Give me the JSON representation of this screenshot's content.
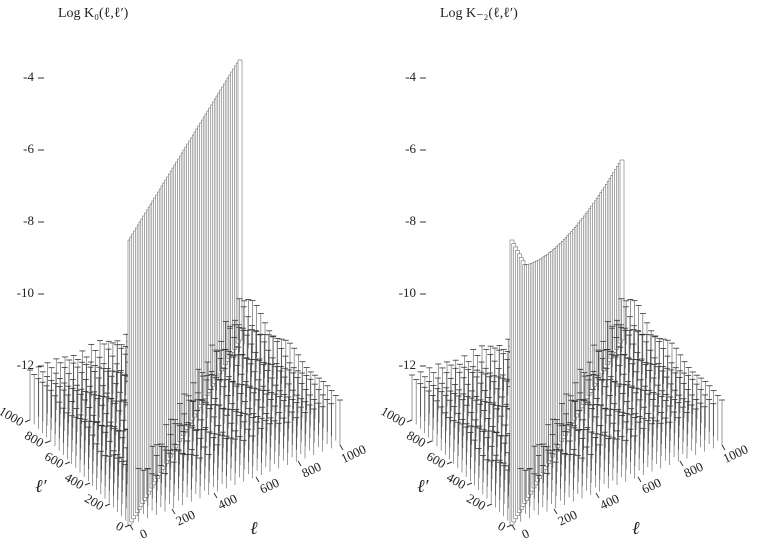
{
  "chart_data": [
    {
      "type": "surface3d",
      "title": "Log K₀(ℓ,ℓ′)",
      "xlabel": "ℓ",
      "ylabel": "ℓ′",
      "zlim": [
        -13.5,
        -4
      ],
      "zticks": [
        -4,
        -6,
        -8,
        -10,
        -12
      ],
      "xlim": [
        0,
        1000
      ],
      "xticks": [
        0,
        200,
        400,
        600,
        800,
        1000
      ],
      "ylim": [
        0,
        1000
      ],
      "yticks": [
        0,
        200,
        400,
        600,
        800,
        1000
      ]
    },
    {
      "type": "surface3d",
      "title": "Log K₋₂(ℓ,ℓ′)",
      "xlabel": "ℓ",
      "ylabel": "ℓ′",
      "zlim": [
        -13.5,
        -4
      ],
      "zticks": [
        -4,
        -6,
        -8,
        -10,
        -12
      ],
      "xlim": [
        0,
        1000
      ],
      "xticks": [
        0,
        200,
        400,
        600,
        800,
        1000
      ],
      "ylim": [
        0,
        1000
      ],
      "yticks": [
        0,
        200,
        400,
        600,
        800,
        1000
      ]
    }
  ]
}
